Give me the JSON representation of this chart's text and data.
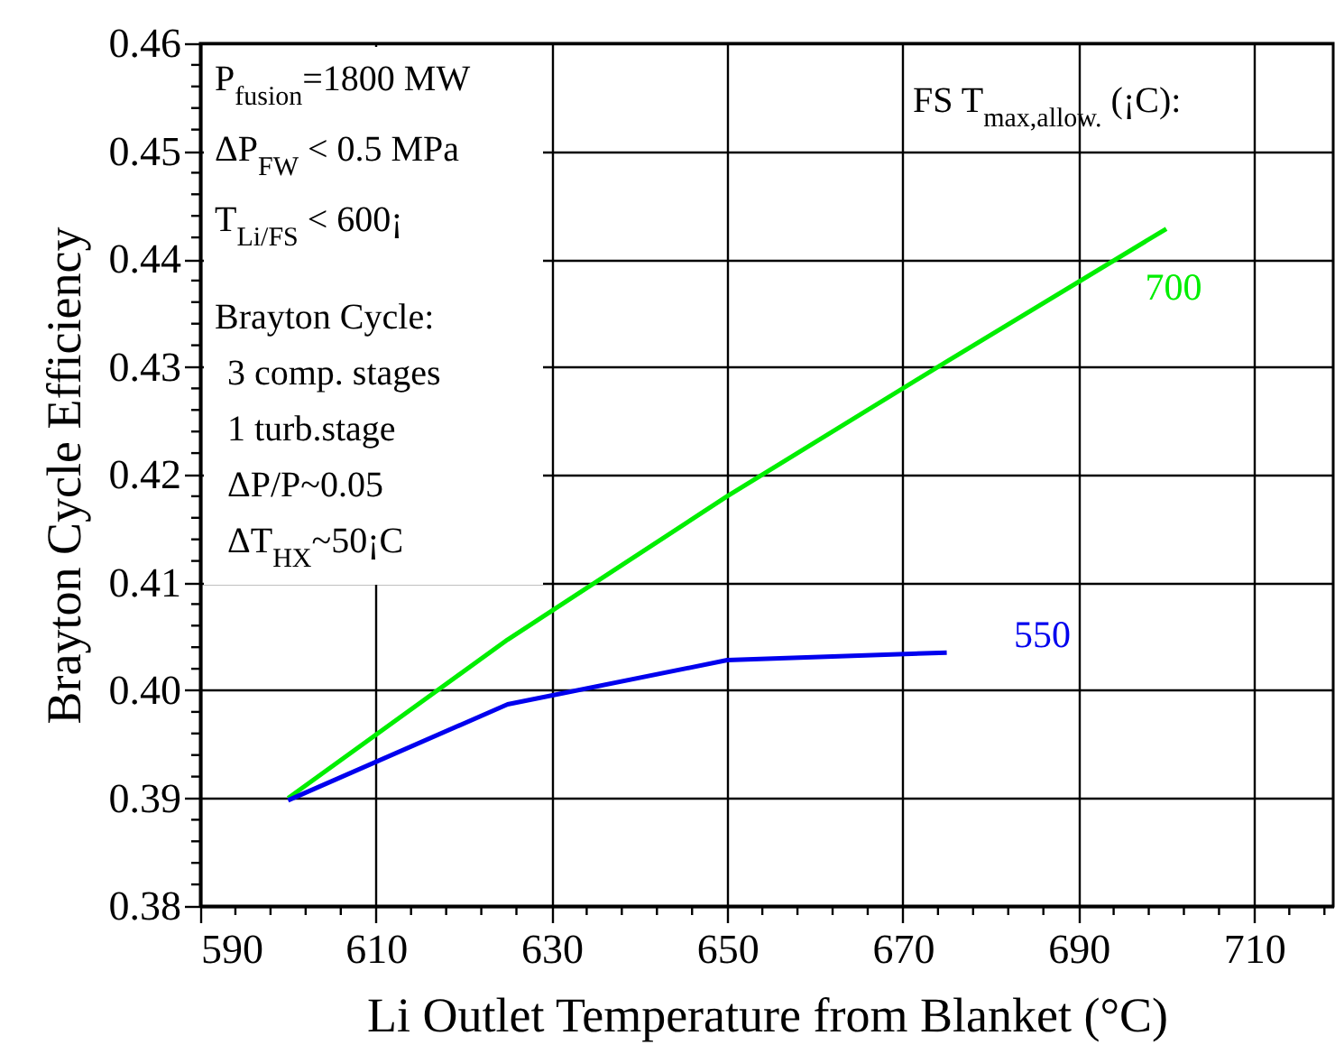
{
  "chart_data": {
    "type": "line",
    "xlabel": "Li Outlet Temperature from Blanket (°C)",
    "ylabel": "Brayton Cycle Efficiency",
    "legend_title": "FS T$_{max,allow.}$ (¡C):",
    "xlim": [
      590,
      719
    ],
    "ylim": [
      0.38,
      0.46
    ],
    "xticks": [
      590,
      {
        "value": 594,
        "label": null
      },
      {
        "value": 598,
        "label": null
      },
      {
        "value": 602,
        "label": null
      },
      {
        "value": 606,
        "label": null
      },
      610,
      {
        "value": 614,
        "label": null
      },
      {
        "value": 618,
        "label": null
      },
      {
        "value": 622,
        "label": null
      },
      {
        "value": 626,
        "label": null
      },
      630,
      {
        "value": 634,
        "label": null
      },
      {
        "value": 638,
        "label": null
      },
      {
        "value": 642,
        "label": null
      },
      {
        "value": 646,
        "label": null
      },
      650,
      {
        "value": 654,
        "label": null
      },
      {
        "value": 658,
        "label": null
      },
      {
        "value": 662,
        "label": null
      },
      {
        "value": 666,
        "label": null
      },
      670,
      {
        "value": 674,
        "label": null
      },
      {
        "value": 678,
        "label": null
      },
      {
        "value": 682,
        "label": null
      },
      {
        "value": 686,
        "label": null
      },
      690,
      {
        "value": 694,
        "label": null
      },
      {
        "value": 698,
        "label": null
      },
      {
        "value": 702,
        "label": null
      },
      {
        "value": 706,
        "label": null
      },
      710,
      {
        "value": 714,
        "label": null
      },
      {
        "value": 718,
        "label": null
      }
    ],
    "yticks": [
      {
        "value": 0.38,
        "label": "0.38"
      },
      {
        "value": 0.382,
        "label": null
      },
      {
        "value": 0.384,
        "label": null
      },
      {
        "value": 0.386,
        "label": null
      },
      {
        "value": 0.388,
        "label": null
      },
      0.39,
      {
        "value": 0.392,
        "label": null
      },
      {
        "value": 0.394,
        "label": null
      },
      {
        "value": 0.396,
        "label": null
      },
      {
        "value": 0.398,
        "label": null
      },
      {
        "value": 0.4,
        "label": "0.40"
      },
      {
        "value": 0.402,
        "label": null
      },
      {
        "value": 0.404,
        "label": null
      },
      {
        "value": 0.406,
        "label": null
      },
      {
        "value": 0.408,
        "label": null
      },
      0.41,
      {
        "value": 0.412,
        "label": null
      },
      {
        "value": 0.414,
        "label": null
      },
      {
        "value": 0.416,
        "label": null
      },
      {
        "value": 0.418,
        "label": null
      },
      0.42,
      {
        "value": 0.422,
        "label": null
      },
      {
        "value": 0.424,
        "label": null
      },
      {
        "value": 0.426,
        "label": null
      },
      {
        "value": 0.428,
        "label": null
      },
      0.43,
      {
        "value": 0.432,
        "label": null
      },
      {
        "value": 0.434,
        "label": null
      },
      {
        "value": 0.436,
        "label": null
      },
      {
        "value": 0.438,
        "label": null
      },
      0.44,
      {
        "value": 0.442,
        "label": null
      },
      {
        "value": 0.444,
        "label": null
      },
      {
        "value": 0.446,
        "label": null
      },
      {
        "value": 0.448,
        "label": null
      },
      0.45,
      {
        "value": 0.452,
        "label": null
      },
      {
        "value": 0.454,
        "label": null
      },
      {
        "value": 0.456,
        "label": null
      },
      {
        "value": 0.458,
        "label": null
      },
      0.46
    ],
    "grid": true,
    "marker": "none",
    "line_style": "solid",
    "x": [
      600,
      625,
      650,
      675,
      700
    ],
    "series": [
      {
        "name": "700",
        "color": "#00ee00",
        "values": [
          0.39,
          0.4047,
          0.418,
          0.4305,
          0.4428
        ]
      },
      {
        "name": "550",
        "color": "#0000ee",
        "x": [
          600,
          625,
          650,
          675
        ],
        "values": [
          0.3898,
          0.3987,
          0.4028,
          0.4035
        ]
      }
    ],
    "annotations": [
      "P$_{fusion}$=1800 MW",
      "ΔP$_{FW}$ < 0.5 MPa",
      "T$_{Li/FS}$ < 600¡",
      "Brayton Cycle:",
      " 3 comp. stages",
      " 1 turb.stage",
      " ΔP/P~0.05",
      " ΔT$_{HX}$~50¡C"
    ]
  }
}
